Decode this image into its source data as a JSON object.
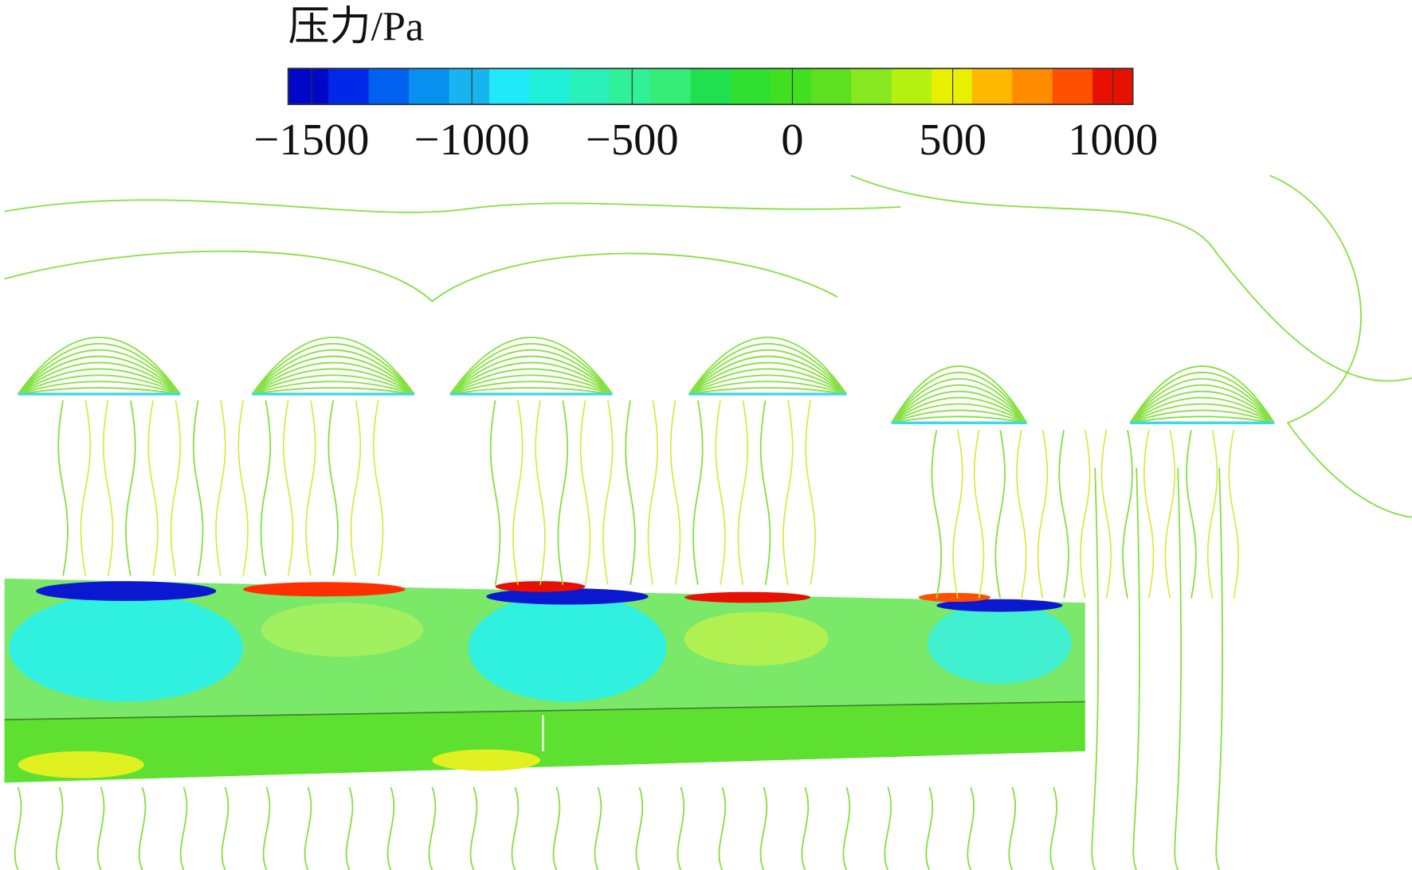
{
  "chart_data": {
    "type": "contour",
    "title": "压力/Pa",
    "clim": [
      -1573,
      1062
    ],
    "cticks": [
      {
        "value": -1500,
        "label": "−1500"
      },
      {
        "value": -1000,
        "label": "−1000"
      },
      {
        "value": -500,
        "label": "−500"
      },
      0,
      500,
      1000
    ],
    "colormap": [
      "#0008c8",
      "#0028e8",
      "#0060f0",
      "#0890f0",
      "#18b4f0",
      "#20e8f8",
      "#20f0d8",
      "#28f0b8",
      "#30f098",
      "#38ec78",
      "#20e050",
      "#30e030",
      "#40e020",
      "#5ce020",
      "#88e820",
      "#b4f010",
      "#e8f000",
      "#ffb800",
      "#ff8c00",
      "#ff5000",
      "#e81000"
    ]
  }
}
